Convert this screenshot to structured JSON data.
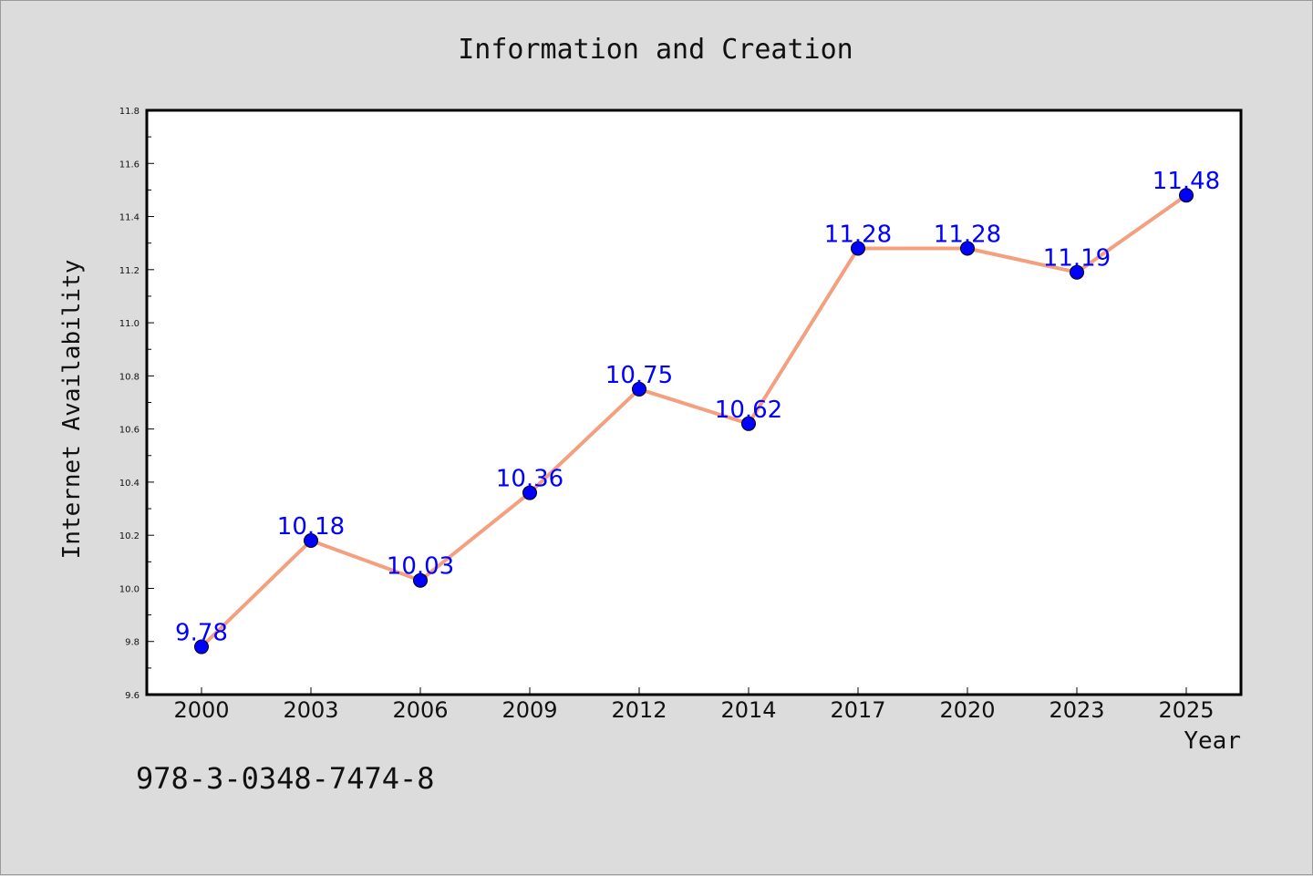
{
  "chart_data": {
    "type": "line",
    "title": "Information and Creation",
    "xlabel": "Year",
    "ylabel": "Internet Availability",
    "categories": [
      "2000",
      "2003",
      "2006",
      "2009",
      "2012",
      "2014",
      "2017",
      "2020",
      "2023",
      "2025"
    ],
    "series": [
      {
        "values": [
          9.78,
          10.18,
          10.03,
          10.36,
          10.75,
          10.62,
          11.28,
          11.28,
          11.19,
          11.48
        ],
        "labels": [
          "9.78",
          "10.18",
          "10.03",
          "10.36",
          "10.75",
          "10.62",
          "11.28",
          "11.28",
          "11.19",
          "11.48"
        ]
      }
    ],
    "ylim": [
      9.6,
      11.8
    ],
    "yticks": [
      "9.6",
      "9.8",
      "10.0",
      "10.2",
      "10.4",
      "10.6",
      "10.8",
      "11.0",
      "11.2",
      "11.4",
      "11.6",
      "11.8"
    ],
    "grid": false,
    "colors": {
      "line": "#f4a07f",
      "marker": "#0000ff",
      "data_label": "#0000ff",
      "background": "#dcdcdc",
      "plot_background": "#ffffff"
    }
  },
  "annotation": "978-3-0348-7474-8"
}
